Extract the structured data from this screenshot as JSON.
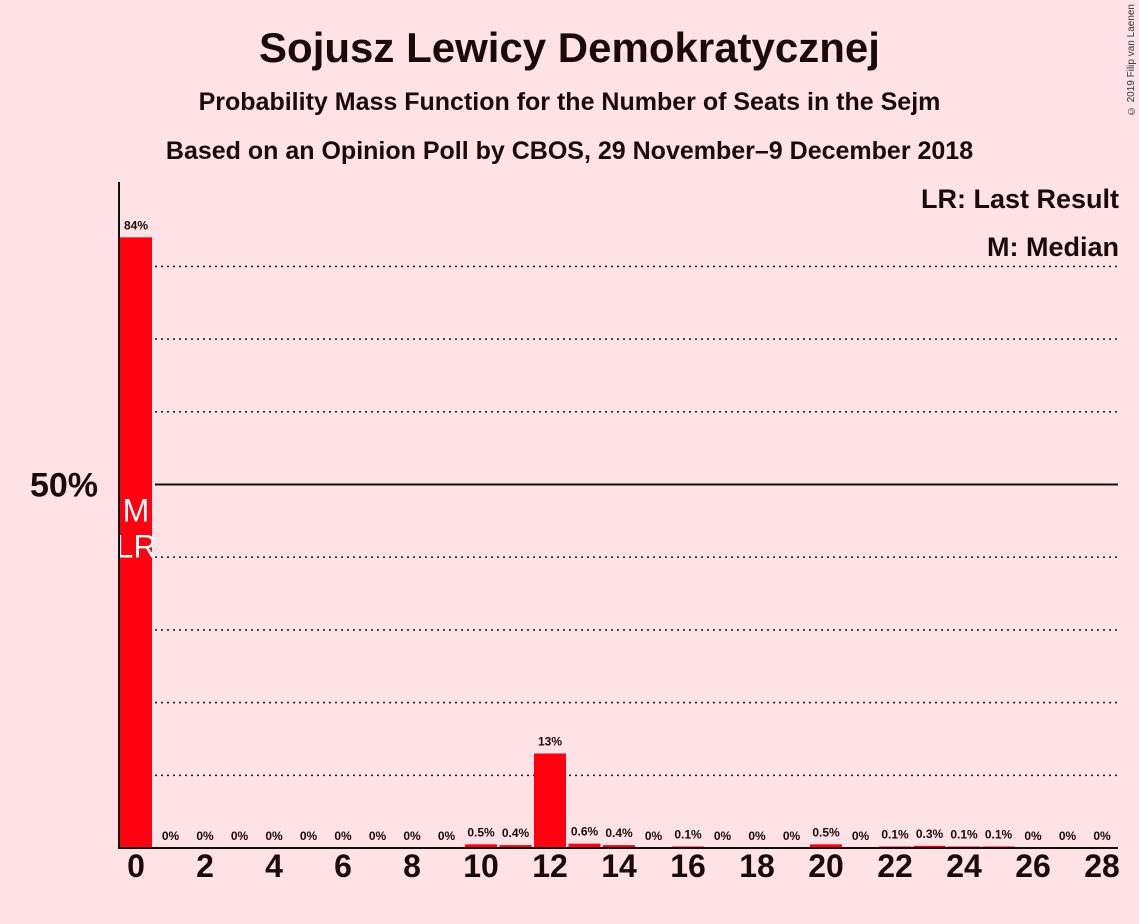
{
  "copyright": "© 2019 Filip van Laenen",
  "chart_data": {
    "type": "bar",
    "title": "Sojusz Lewicy Demokratycznej",
    "subtitle": "Probability Mass Function for the Number of Seats in the Sejm",
    "subtitle2": "Based on an Opinion Poll by CBOS, 29 November–9 December 2018",
    "ylabel_tick": "50%",
    "ylim": [
      0,
      90
    ],
    "gridlines": [
      10,
      20,
      30,
      40,
      60,
      70,
      80
    ],
    "solid_line": 50,
    "categories": [
      0,
      1,
      2,
      3,
      4,
      5,
      6,
      7,
      8,
      9,
      10,
      11,
      12,
      13,
      14,
      15,
      16,
      17,
      18,
      19,
      20,
      21,
      22,
      23,
      24,
      25,
      26,
      27,
      28
    ],
    "values": [
      84,
      0,
      0,
      0,
      0,
      0,
      0,
      0,
      0,
      0,
      0.5,
      0.4,
      13,
      0.6,
      0.4,
      0,
      0.1,
      0,
      0,
      0,
      0.5,
      0,
      0.1,
      0.3,
      0.1,
      0.1,
      0,
      0,
      0
    ],
    "value_labels": [
      "84%",
      "0%",
      "0%",
      "0%",
      "0%",
      "0%",
      "0%",
      "0%",
      "0%",
      "0%",
      "0.5%",
      "0.4%",
      "13%",
      "0.6%",
      "0.4%",
      "0%",
      "0.1%",
      "0%",
      "0%",
      "0%",
      "0.5%",
      "0%",
      "0.1%",
      "0.3%",
      "0.1%",
      "0.1%",
      "0%",
      "0%",
      "0%"
    ],
    "x_tick_labels": [
      "0",
      "2",
      "4",
      "6",
      "8",
      "10",
      "12",
      "14",
      "16",
      "18",
      "20",
      "22",
      "24",
      "26",
      "28"
    ],
    "median_seat": 0,
    "last_result_seat": 0,
    "median_label": "M",
    "last_result_label": "LR",
    "legend": [
      "LR: Last Result",
      "M: Median"
    ],
    "bar_color": "#ff0010"
  }
}
